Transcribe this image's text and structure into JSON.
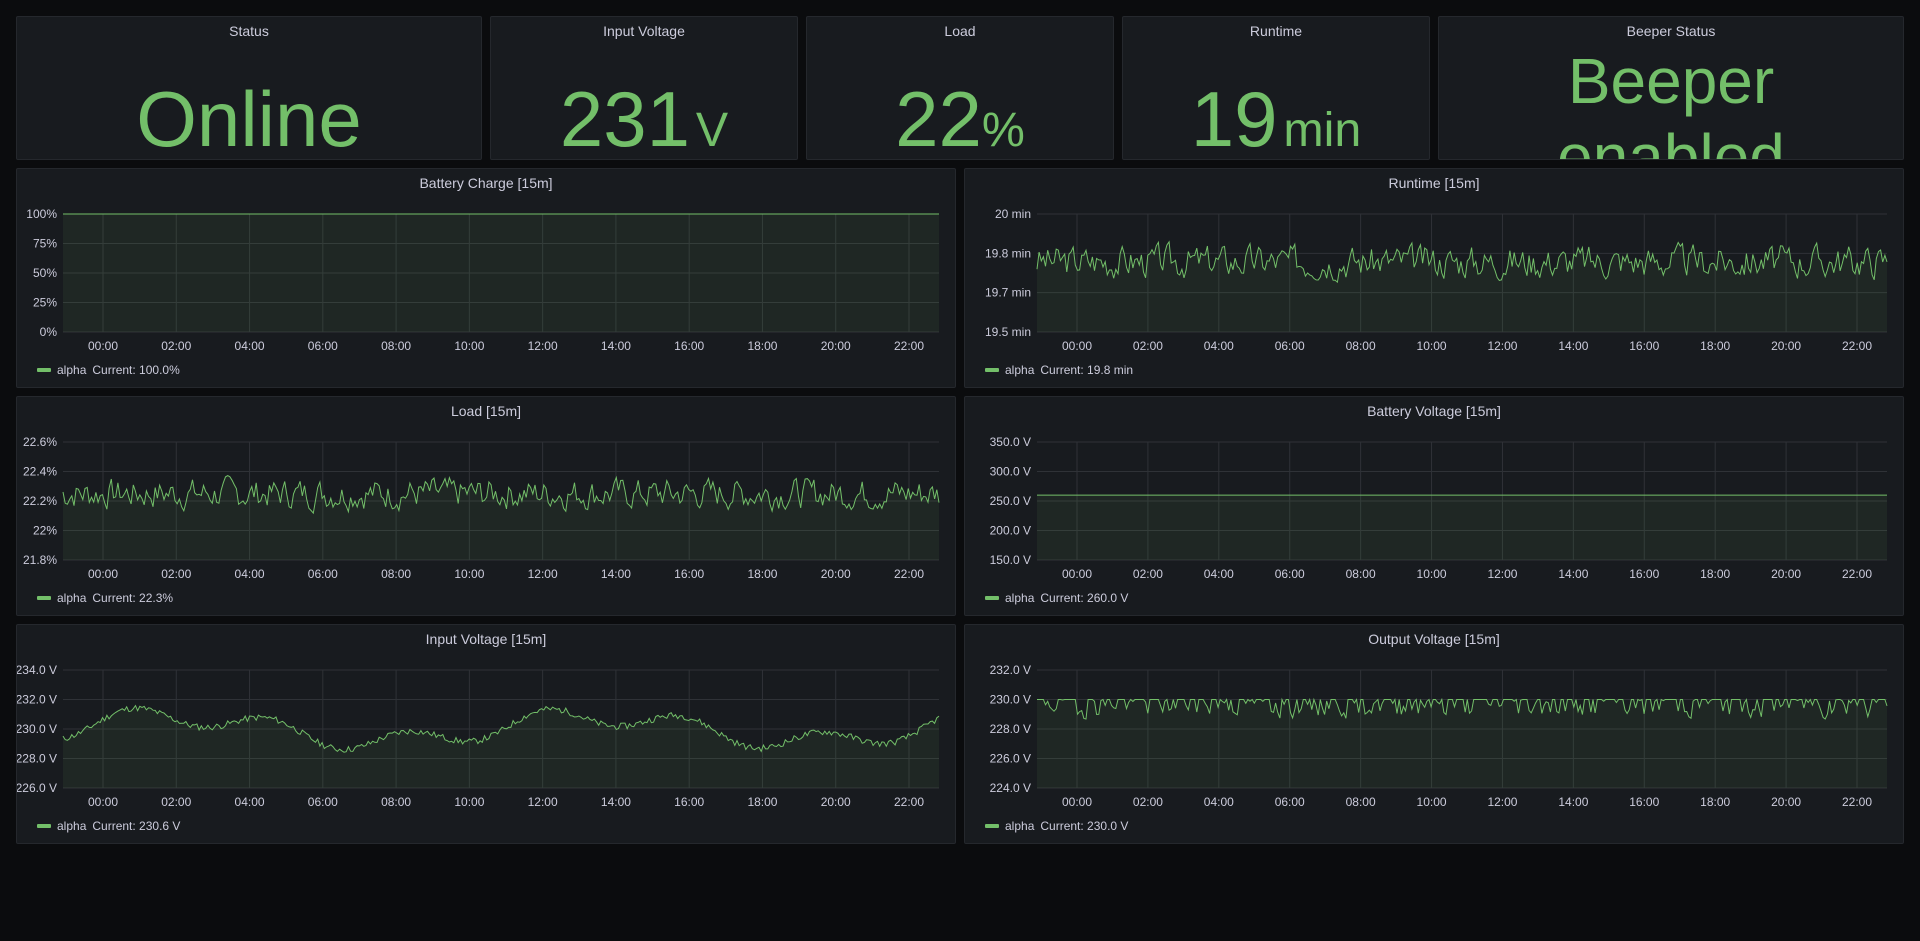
{
  "colors": {
    "accent": "#73bf69",
    "panel_bg": "#181b1f",
    "grid": "#2f3237"
  },
  "stats": [
    {
      "title": "Status",
      "value": "Online",
      "unit": ""
    },
    {
      "title": "Input Voltage",
      "value": "231",
      "unit": "V"
    },
    {
      "title": "Load",
      "value": "22",
      "unit": "%"
    },
    {
      "title": "Runtime",
      "value": "19",
      "unit": "min"
    },
    {
      "title": "Beeper Status",
      "value_line1": "Beeper",
      "value_line2": "enabled"
    }
  ],
  "chart_data": [
    {
      "type": "line",
      "title": "Battery Charge [15m]",
      "x_ticks": [
        "00:00",
        "02:00",
        "04:00",
        "06:00",
        "08:00",
        "10:00",
        "12:00",
        "14:00",
        "16:00",
        "18:00",
        "20:00",
        "22:00"
      ],
      "y_ticks": [
        "100%",
        "75%",
        "50%",
        "25%",
        "0%"
      ],
      "ylim": [
        0,
        100
      ],
      "series": [
        {
          "name": "alpha",
          "flat": 100
        }
      ],
      "legend": {
        "name": "alpha",
        "current": "Current: 100.0%"
      },
      "grid": true
    },
    {
      "type": "line",
      "title": "Runtime [15m]",
      "x_ticks": [
        "00:00",
        "02:00",
        "04:00",
        "06:00",
        "08:00",
        "10:00",
        "12:00",
        "14:00",
        "16:00",
        "18:00",
        "20:00",
        "22:00"
      ],
      "y_ticks": [
        "20 min",
        "19.8 min",
        "19.7 min",
        "19.5 min"
      ],
      "ylim": [
        19.5,
        20
      ],
      "series": [
        {
          "name": "alpha",
          "base": 19.8,
          "amp": 0.06,
          "seed": 3
        }
      ],
      "legend": {
        "name": "alpha",
        "current": "Current: 19.8 min"
      },
      "grid": true
    },
    {
      "type": "line",
      "title": "Load [15m]",
      "x_ticks": [
        "00:00",
        "02:00",
        "04:00",
        "06:00",
        "08:00",
        "10:00",
        "12:00",
        "14:00",
        "16:00",
        "18:00",
        "20:00",
        "22:00"
      ],
      "y_ticks": [
        "22.6%",
        "22.4%",
        "22.2%",
        "22%",
        "21.8%"
      ],
      "ylim": [
        21.8,
        22.6
      ],
      "series": [
        {
          "name": "alpha",
          "base": 22.25,
          "amp": 0.09,
          "seed": 7
        }
      ],
      "legend": {
        "name": "alpha",
        "current": "Current: 22.3%"
      },
      "grid": true
    },
    {
      "type": "line",
      "title": "Battery Voltage [15m]",
      "x_ticks": [
        "00:00",
        "02:00",
        "04:00",
        "06:00",
        "08:00",
        "10:00",
        "12:00",
        "14:00",
        "16:00",
        "18:00",
        "20:00",
        "22:00"
      ],
      "y_ticks": [
        "350.0 V",
        "300.0 V",
        "250.0 V",
        "200.0 V",
        "150.0 V"
      ],
      "ylim": [
        150,
        350
      ],
      "series": [
        {
          "name": "alpha",
          "flat": 260
        }
      ],
      "legend": {
        "name": "alpha",
        "current": "Current: 260.0 V"
      },
      "grid": true
    },
    {
      "type": "line",
      "title": "Input Voltage [15m]",
      "x_ticks": [
        "00:00",
        "02:00",
        "04:00",
        "06:00",
        "08:00",
        "10:00",
        "12:00",
        "14:00",
        "16:00",
        "18:00",
        "20:00",
        "22:00"
      ],
      "y_ticks": [
        "234.0 V",
        "232.0 V",
        "230.0 V",
        "228.0 V",
        "226.0 V"
      ],
      "ylim": [
        226,
        234
      ],
      "series": [
        {
          "name": "alpha",
          "base": 230,
          "amp": 1.1,
          "seed": 11,
          "smooth": true
        }
      ],
      "legend": {
        "name": "alpha",
        "current": "Current: 230.6 V"
      },
      "grid": true
    },
    {
      "type": "line",
      "title": "Output Voltage [15m]",
      "x_ticks": [
        "00:00",
        "02:00",
        "04:00",
        "06:00",
        "08:00",
        "10:00",
        "12:00",
        "14:00",
        "16:00",
        "18:00",
        "20:00",
        "22:00"
      ],
      "y_ticks": [
        "232.0 V",
        "230.0 V",
        "228.0 V",
        "226.0 V",
        "224.0 V"
      ],
      "ylim": [
        224,
        232
      ],
      "series": [
        {
          "name": "alpha",
          "base": 229,
          "amp": 1.2,
          "seed": 19,
          "clip_top": 230
        }
      ],
      "legend": {
        "name": "alpha",
        "current": "Current: 230.0 V"
      },
      "grid": true
    }
  ]
}
